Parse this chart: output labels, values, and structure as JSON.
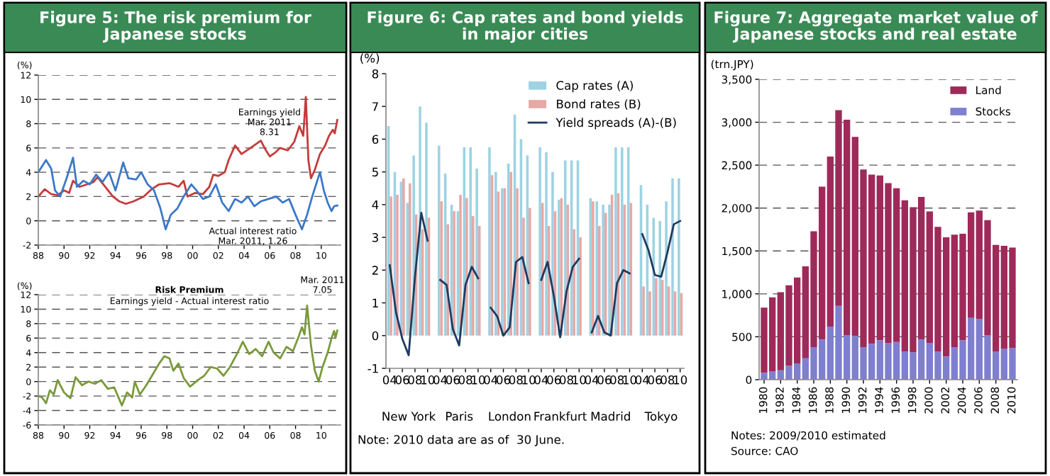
{
  "chart_data": [
    {
      "type": "line",
      "title": "Figure 5: The risk premium for\nJapanese stocks",
      "ylabel": "(%)",
      "xlim": [
        1988,
        2011.5
      ],
      "xticks": [
        {
          "value": 1988,
          "label": "88"
        },
        {
          "value": 1990,
          "label": "90"
        },
        {
          "value": 1992,
          "label": "92"
        },
        {
          "value": 1994,
          "label": "94"
        },
        {
          "value": 1996,
          "label": "96"
        },
        {
          "value": 1998,
          "label": "98"
        },
        {
          "value": 2000,
          "label": "00"
        },
        {
          "value": 2002,
          "label": "02"
        },
        {
          "value": 2004,
          "label": "04"
        },
        {
          "value": 2006,
          "label": "06"
        },
        {
          "value": 2008,
          "label": "08"
        },
        {
          "value": 2010,
          "label": "10"
        }
      ],
      "ylim": [
        -2,
        12
      ],
      "yticks": [
        -2,
        0,
        2,
        4,
        6,
        8,
        10,
        12
      ],
      "grid": "y",
      "series": [
        {
          "color": "#c63a3a",
          "x": [
            1988,
            1988.5,
            1989,
            1989.5,
            1990,
            1990.4,
            1990.7,
            1991.2,
            1991.8,
            1992.3,
            1992.6,
            1993.2,
            1993.8,
            1994.3,
            1994.8,
            1995.4,
            1996.2,
            1996.8,
            1997.4,
            1998.2,
            1998.9,
            1999.3,
            1999.6,
            2000.2,
            2000.8,
            2001.3,
            2001.6,
            2002.0,
            2002.5,
            2002.8,
            2003.3,
            2003.8,
            2004.5,
            2005.3,
            2005.7,
            2006.0,
            2006.4,
            2006.8,
            2007.4,
            2007.9,
            2008.3,
            2008.6,
            2008.8,
            2009.0,
            2009.2,
            2009.5,
            2009.9,
            2010.3,
            2010.6,
            2010.9,
            2011.05,
            2011.25
          ],
          "values": [
            2.0,
            2.6,
            2.2,
            2.1,
            2.5,
            2.3,
            3.3,
            2.8,
            3.0,
            3.2,
            3.6,
            2.8,
            2.0,
            1.6,
            1.4,
            1.6,
            2.0,
            2.6,
            3.0,
            3.1,
            2.8,
            3.3,
            2.0,
            2.3,
            2.2,
            2.8,
            3.8,
            3.7,
            4.0,
            5.0,
            6.2,
            5.5,
            6.0,
            6.6,
            5.8,
            5.3,
            5.6,
            6.0,
            5.8,
            6.5,
            7.8,
            7.0,
            10.2,
            5.0,
            3.5,
            4.2,
            5.5,
            6.2,
            7.0,
            7.5,
            7.2,
            8.31
          ]
        },
        {
          "color": "#3c78c8",
          "x": [
            1988,
            1988.6,
            1989.0,
            1989.3,
            1989.7,
            1990.2,
            1990.7,
            1991.0,
            1991.5,
            1992.0,
            1992.5,
            1993.0,
            1993.5,
            1994.0,
            1994.6,
            1995.0,
            1995.6,
            1996.0,
            1996.5,
            1997.0,
            1997.5,
            1997.9,
            1998.3,
            1998.8,
            1999.3,
            1999.9,
            2000.3,
            2000.8,
            2001.3,
            2001.8,
            2002.3,
            2002.8,
            2003.3,
            2003.8,
            2004.3,
            2004.8,
            2005.3,
            2005.9,
            2006.5,
            2007.0,
            2007.5,
            2008.0,
            2008.5,
            2008.9,
            2009.3,
            2009.6,
            2009.9,
            2010.2,
            2010.5,
            2010.8,
            2011.0,
            2011.25
          ],
          "values": [
            4.0,
            5.0,
            4.3,
            2.5,
            2.0,
            3.5,
            5.2,
            2.8,
            3.3,
            3.0,
            3.8,
            3.2,
            4.0,
            2.5,
            4.8,
            3.5,
            3.4,
            4.0,
            3.0,
            2.5,
            1.0,
            -0.7,
            0.5,
            1.0,
            2.0,
            3.0,
            2.5,
            1.8,
            2.0,
            3.0,
            1.5,
            0.8,
            1.8,
            1.5,
            2.0,
            1.2,
            1.6,
            1.8,
            2.0,
            1.5,
            1.8,
            0.5,
            -0.7,
            0.5,
            2.0,
            3.0,
            4.0,
            2.5,
            1.5,
            0.8,
            1.2,
            1.26
          ]
        }
      ],
      "annotations": [
        "Earnings yield\nMar. 2011\n8.31",
        "Actual interest ratio\nMar. 2011, 1.26"
      ]
    },
    {
      "type": "line",
      "title": "Risk Premium",
      "subtitle": "Earnings yield - Actual interest ratio",
      "ylabel": "(%)",
      "xlim": [
        1988,
        2011.5
      ],
      "xticks": [
        {
          "value": 1988,
          "label": "88"
        },
        {
          "value": 1990,
          "label": "90"
        },
        {
          "value": 1992,
          "label": "92"
        },
        {
          "value": 1994,
          "label": "94"
        },
        {
          "value": 1996,
          "label": "96"
        },
        {
          "value": 1998,
          "label": "98"
        },
        {
          "value": 2000,
          "label": "00"
        },
        {
          "value": 2002,
          "label": "02"
        },
        {
          "value": 2004,
          "label": "04"
        },
        {
          "value": 2006,
          "label": "06"
        },
        {
          "value": 2008,
          "label": "08"
        },
        {
          "value": 2010,
          "label": "10"
        }
      ],
      "ylim": [
        -6,
        12
      ],
      "yticks": [
        -6,
        -4,
        -2,
        0,
        2,
        4,
        6,
        8,
        10,
        12
      ],
      "grid": "y",
      "series": [
        {
          "color": "#7a9a3a",
          "x": [
            1988,
            1988.3,
            1988.6,
            1988.9,
            1989.2,
            1989.5,
            1990.0,
            1990.5,
            1990.9,
            1991.4,
            1991.9,
            1992.4,
            1992.9,
            1993.4,
            1993.9,
            1994.5,
            1994.9,
            1995.3,
            1995.5,
            1995.9,
            1996.4,
            1996.9,
            1997.4,
            1997.8,
            1998.2,
            1998.5,
            1998.9,
            1999.3,
            1999.8,
            2000.4,
            2000.9,
            2001.4,
            2001.9,
            2002.4,
            2002.9,
            2003.5,
            2003.9,
            2004.4,
            2004.9,
            2005.4,
            2005.9,
            2006.3,
            2006.8,
            2007.3,
            2007.8,
            2008.2,
            2008.5,
            2008.7,
            2008.9,
            2009.2,
            2009.5,
            2009.8,
            2010.1,
            2010.5,
            2010.8,
            2011.0,
            2011.1,
            2011.25
          ],
          "values": [
            -2.0,
            -2.2,
            -3.0,
            -1.2,
            -1.8,
            0.2,
            -1.5,
            -2.3,
            0.6,
            -0.5,
            0.0,
            -0.3,
            0.2,
            -1.0,
            -0.8,
            -3.3,
            -1.5,
            -2.2,
            0.0,
            -1.8,
            -0.5,
            1.0,
            2.5,
            3.5,
            3.2,
            1.5,
            2.5,
            0.5,
            -0.7,
            0.2,
            0.8,
            2.0,
            1.8,
            0.8,
            2.0,
            4.0,
            5.5,
            3.8,
            4.5,
            3.5,
            5.5,
            4.0,
            3.2,
            4.8,
            4.2,
            6.0,
            7.5,
            6.5,
            10.5,
            5.0,
            1.5,
            0.0,
            2.0,
            4.0,
            6.0,
            7.0,
            6.0,
            7.05
          ]
        }
      ],
      "annotations": [
        "Mar. 2011\n7.05"
      ]
    },
    {
      "type": "bar",
      "title": "Figure 6: Cap rates and bond yields\nin major cities",
      "ylabel": "(%)",
      "ylim": [
        -1,
        8
      ],
      "yticks": [
        -1,
        0,
        1,
        2,
        3,
        4,
        5,
        6,
        7,
        8
      ],
      "legend": "top right",
      "categories": [
        "04",
        null,
        "06",
        null,
        "08",
        null,
        "10",
        null,
        "04",
        null,
        "06",
        null,
        "08",
        null,
        "10",
        null,
        "04",
        null,
        "06",
        null,
        "08",
        null,
        "10",
        null,
        "04",
        null,
        "06",
        null,
        "08",
        null,
        "10",
        null,
        "04",
        null,
        "06",
        null,
        "08",
        null,
        "10",
        null,
        "04",
        null,
        "06",
        null,
        "08",
        null,
        "10"
      ],
      "series": [
        {
          "name": "Cap rates (A)",
          "type": "bar",
          "color": "#9dd3e3",
          "values": [
            6.4,
            5.0,
            4.7,
            4.05,
            5.5,
            7.0,
            6.5,
            null,
            5.8,
            4.95,
            4.0,
            3.8,
            5.75,
            5.75,
            5.1,
            null,
            5.75,
            5.0,
            4.5,
            5.25,
            6.75,
            6.0,
            5.5,
            null,
            5.75,
            5.6,
            5.0,
            4.15,
            5.35,
            5.35,
            5.35,
            null,
            4.2,
            4.1,
            4.0,
            4.0,
            5.75,
            5.75,
            5.75,
            null,
            4.6,
            4.0,
            3.6,
            3.5,
            4.1,
            4.8,
            4.8
          ]
        },
        {
          "name": "Bond rates (B)",
          "type": "bar",
          "color": "#e6a9a6",
          "values": [
            4.25,
            4.3,
            4.8,
            4.65,
            3.7,
            3.25,
            3.6,
            null,
            4.1,
            3.4,
            3.8,
            4.3,
            4.2,
            3.65,
            3.35,
            null,
            4.9,
            4.4,
            4.5,
            5.0,
            4.5,
            3.6,
            3.9,
            null,
            4.05,
            3.35,
            3.8,
            4.2,
            4.0,
            3.25,
            3.0,
            null,
            4.1,
            3.35,
            3.75,
            4.3,
            4.35,
            4.0,
            4.05,
            null,
            1.5,
            1.35,
            1.75,
            1.7,
            1.5,
            1.35,
            1.3
          ]
        },
        {
          "name": "Yield spreads (A)-(B)",
          "type": "line",
          "color": "#1f3a60",
          "values": [
            2.15,
            0.7,
            -0.1,
            -0.6,
            1.8,
            3.75,
            2.9,
            null,
            1.7,
            1.55,
            0.2,
            -0.3,
            1.55,
            2.1,
            1.75,
            null,
            0.85,
            0.6,
            0.0,
            0.25,
            2.25,
            2.4,
            1.6,
            null,
            1.7,
            2.25,
            1.2,
            -0.05,
            1.35,
            2.1,
            2.35,
            null,
            0.1,
            0.6,
            0.1,
            0.0,
            1.6,
            2.0,
            1.9,
            null,
            3.1,
            2.6,
            1.85,
            1.8,
            2.55,
            3.4,
            3.5
          ]
        }
      ],
      "annotations": [
        "New York",
        "Paris",
        "London",
        "Frankfurt",
        "Madrid",
        "Tokyo",
        "Note: 2010 data are as of  30 June."
      ]
    },
    {
      "type": "bar",
      "stacked": true,
      "title": "Figure 7: Aggregate market value of\nJapanese stocks and real estate",
      "ylabel": "(trn.JPY)",
      "ylim": [
        0,
        3500
      ],
      "yticks": [
        0,
        500,
        {
          "value": 1000,
          "label": "1,000"
        },
        {
          "value": 1500,
          "label": "1,500"
        },
        {
          "value": 2000,
          "label": "2,000"
        },
        {
          "value": 2500,
          "label": "2,500"
        },
        {
          "value": 3000,
          "label": "3,000"
        },
        {
          "value": 3500,
          "label": "3,500"
        }
      ],
      "grid": "y",
      "legend": "top right",
      "categories": [
        "1980",
        null,
        "1982",
        null,
        "1984",
        null,
        "1986",
        null,
        "1988",
        null,
        "1990",
        null,
        "1992",
        null,
        "1994",
        null,
        "1996",
        null,
        "1998",
        null,
        "2000",
        null,
        "2002",
        null,
        "2004",
        null,
        "2006",
        null,
        "2008",
        null,
        "2010"
      ],
      "series": [
        {
          "name": "Stocks",
          "color": "#7f7fcf",
          "values": [
            80,
            100,
            110,
            160,
            190,
            250,
            380,
            470,
            620,
            860,
            520,
            510,
            380,
            420,
            460,
            430,
            440,
            330,
            320,
            470,
            430,
            330,
            270,
            380,
            460,
            720,
            710,
            520,
            330,
            360,
            370
          ]
        },
        {
          "name": "Land",
          "color": "#9e2a5a",
          "values": [
            760,
            860,
            910,
            940,
            1000,
            1070,
            1350,
            1780,
            1980,
            2280,
            2510,
            2320,
            2070,
            1970,
            1920,
            1860,
            1790,
            1760,
            1690,
            1660,
            1530,
            1450,
            1390,
            1310,
            1240,
            1230,
            1260,
            1340,
            1240,
            1200,
            1170
          ]
        }
      ],
      "annotations": [
        "Notes: 2009/2010 estimated",
        "Source: CAO"
      ]
    }
  ]
}
